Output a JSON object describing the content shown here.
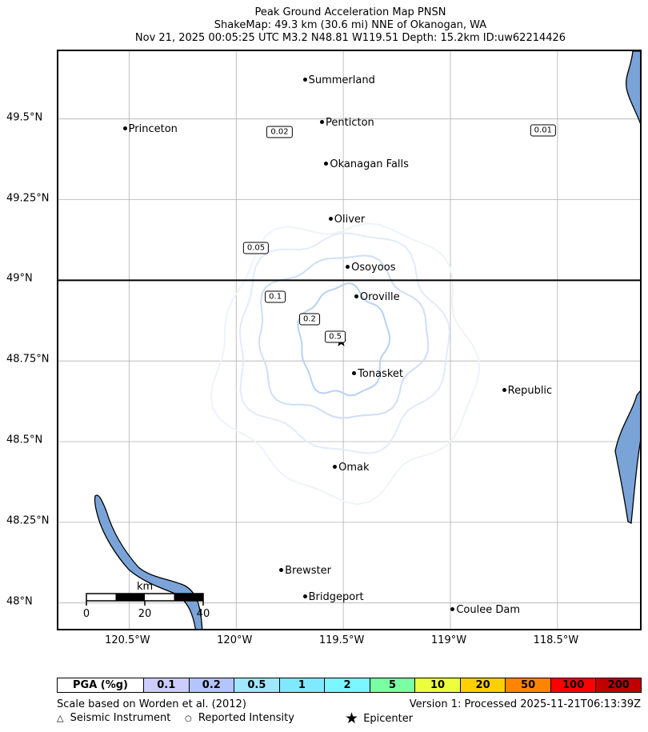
{
  "title": {
    "line1": "Peak Ground Acceleration Map PNSN",
    "line2": "ShakeMap: 49.3 km (30.6 mi) NNE of Okanogan, WA",
    "line3": "Nov 21, 2025 00:05:25 UTC M3.2 N48.81 W119.51 Depth: 15.2km ID:uw62214426"
  },
  "map": {
    "lon_range": [
      -120.83,
      -118.1
    ],
    "lat_range": [
      47.91,
      49.71
    ],
    "x_ticks": [
      -120.5,
      -120.0,
      -119.5,
      -119.0,
      -118.5
    ],
    "y_ticks": [
      49.5,
      49.25,
      49.0,
      48.75,
      48.5,
      48.25,
      48.0
    ],
    "x_tick_labels": [
      "120.5°W",
      "120°W",
      "119.5°W",
      "119°W",
      "118.5°W"
    ],
    "y_tick_labels": [
      "49.5°N",
      "49.25°N",
      "49°N",
      "48.75°N",
      "48.5°N",
      "48.25°N",
      "48°N"
    ],
    "border_lat": 49.0,
    "epicenter": {
      "lat": 48.81,
      "lon": -119.51
    },
    "cities": [
      {
        "name": "Summerland",
        "lat": 49.61,
        "lon": -119.67
      },
      {
        "name": "Penticton",
        "lat": 49.48,
        "lon": -119.59
      },
      {
        "name": "Princeton",
        "lat": 49.46,
        "lon": -120.51
      },
      {
        "name": "Okanagan Falls",
        "lat": 49.35,
        "lon": -119.57
      },
      {
        "name": "Oliver",
        "lat": 49.18,
        "lon": -119.55
      },
      {
        "name": "Osoyoos",
        "lat": 49.03,
        "lon": -119.47
      },
      {
        "name": "Oroville",
        "lat": 48.94,
        "lon": -119.43
      },
      {
        "name": "Tonasket",
        "lat": 48.7,
        "lon": -119.44
      },
      {
        "name": "Republic",
        "lat": 48.65,
        "lon": -118.74
      },
      {
        "name": "Omak",
        "lat": 48.41,
        "lon": -119.53
      },
      {
        "name": "Brewster",
        "lat": 48.09,
        "lon": -119.78
      },
      {
        "name": "Bridgeport",
        "lat": 48.01,
        "lon": -119.67
      },
      {
        "name": "Coulee Dam",
        "lat": 47.97,
        "lon": -118.98
      }
    ],
    "contour_labels": [
      {
        "text": "0.02",
        "lat": 49.455,
        "lon": -119.79
      },
      {
        "text": "0.01",
        "lat": 49.46,
        "lon": -118.56
      },
      {
        "text": "0.05",
        "lat": 49.095,
        "lon": -119.9
      },
      {
        "text": "0.1",
        "lat": 48.945,
        "lon": -119.81
      },
      {
        "text": "0.2",
        "lat": 48.875,
        "lon": -119.65
      },
      {
        "text": "0.5",
        "lat": 48.82,
        "lon": -119.53
      }
    ],
    "scale_bar": {
      "unit": "km",
      "ticks": [
        "0",
        "20",
        "40"
      ]
    }
  },
  "legend": {
    "header": "PGA (%g)",
    "bins": [
      {
        "label": "0.1",
        "color": "#ccccff"
      },
      {
        "label": "0.2",
        "color": "#b4c4ff"
      },
      {
        "label": "0.5",
        "color": "#a0e6ff"
      },
      {
        "label": "1",
        "color": "#80e8ff"
      },
      {
        "label": "2",
        "color": "#7af7ff"
      },
      {
        "label": "5",
        "color": "#7affa3"
      },
      {
        "label": "10",
        "color": "#ecff3c"
      },
      {
        "label": "20",
        "color": "#ffd000"
      },
      {
        "label": "50",
        "color": "#ff8400"
      },
      {
        "label": "100",
        "color": "#ff0000"
      },
      {
        "label": "200",
        "color": "#c00000"
      }
    ]
  },
  "footer": {
    "scale_note": "Scale based on Worden et al. (2012)",
    "version": "Version 1: Processed 2025-11-21T06:13:39Z",
    "instrument": "Seismic Instrument",
    "reported": "Reported Intensity",
    "epicenter": "Epicenter",
    "triangle_glyph": "△",
    "circle_glyph": "○",
    "star_glyph": "★"
  },
  "colors": {
    "water": "#7aa3d8",
    "grid": "#b0b0b0",
    "contour_0_5": "#a5c7f0",
    "contour_0_2": "#b8d2f2",
    "contour_0_1": "#cfdef7",
    "contour_0_05": "#e2ebf9",
    "contour_0_02": "#eef3fb"
  }
}
